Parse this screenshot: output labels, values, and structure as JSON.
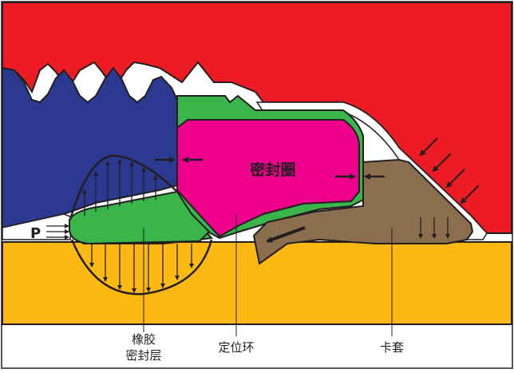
{
  "labels": {
    "seal_ring": "密封圈",
    "pressure": "P",
    "rubber_line1": "橡胶",
    "rubber_line2": "密封层",
    "locating_ring": "定位环",
    "ferrule": "卡套"
  },
  "colors": {
    "outer_body": "#ED1C24",
    "thread_body": "#2B3990",
    "seal_ring": "#EC008C",
    "green_part": "#39B54A",
    "ferrule": "#8B6E4E",
    "pipe": "#FDB913",
    "outline": "#231F20",
    "background": "#FFFFFF"
  }
}
